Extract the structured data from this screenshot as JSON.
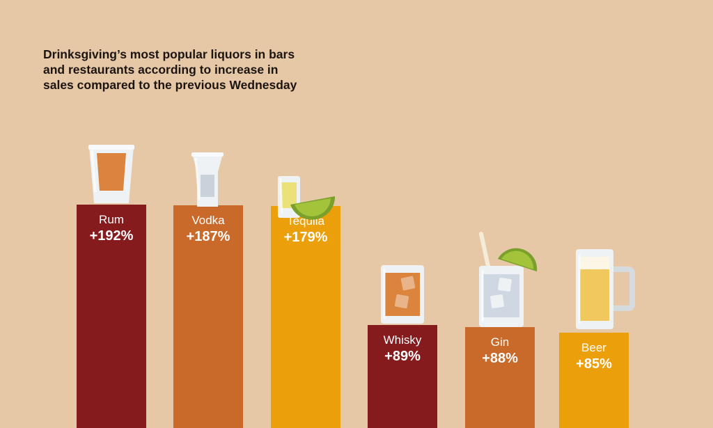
{
  "title_lines": [
    "Drinksgiving’s most popular liquors in bars",
    "and restaurants according to increase in",
    "sales compared to the previous Wednesday"
  ],
  "colors": {
    "background": "#e6c8a6",
    "dark_red": "#861b1e",
    "orange": "#c96a2a",
    "gold": "#eb9f0b"
  },
  "chart_data": {
    "type": "bar",
    "title": "Drinksgiving’s most popular liquors in bars and restaurants according to increase in sales compared to the previous Wednesday",
    "categories": [
      "Rum",
      "Vodka",
      "Tequila",
      "Whisky",
      "Gin",
      "Beer"
    ],
    "values": [
      192,
      187,
      179,
      89,
      88,
      85
    ],
    "value_labels": [
      "+192%",
      "+187%",
      "+179%",
      "+89%",
      "+88%",
      "+85%"
    ],
    "bar_colors": [
      "#861b1e",
      "#c96a2a",
      "#eb9f0b",
      "#861b1e",
      "#c96a2a",
      "#eb9f0b"
    ],
    "icons": [
      "shot-glass-rum-icon",
      "shot-glass-vodka-icon",
      "tequila-shot-lime-icon",
      "whisky-rocks-glass-icon",
      "gin-glass-lime-straw-icon",
      "beer-mug-icon"
    ],
    "xlabel": "",
    "ylabel": "",
    "axes_visible": false,
    "grid": false,
    "legend": "none"
  }
}
